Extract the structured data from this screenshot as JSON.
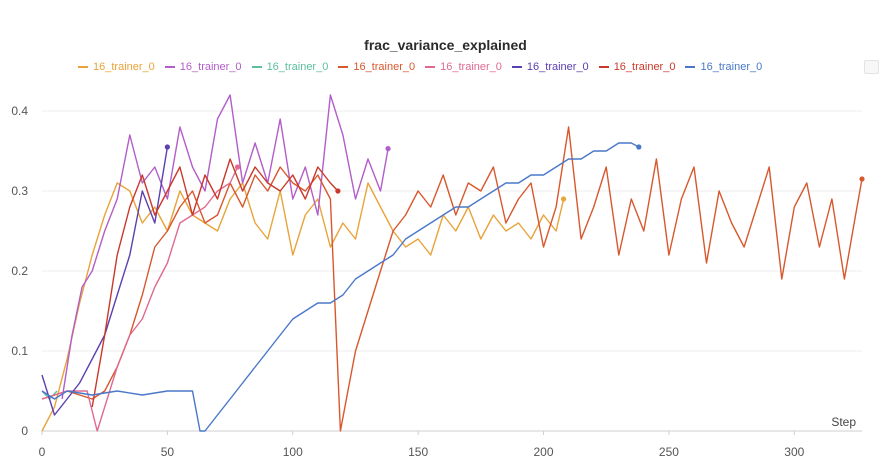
{
  "chart_data": {
    "type": "line",
    "title": "frac_variance_explained",
    "xlabel": "Step",
    "ylabel": "",
    "xlim": [
      0,
      327
    ],
    "ylim": [
      0,
      0.42
    ],
    "xticks": [
      0,
      50,
      100,
      150,
      200,
      250,
      300
    ],
    "yticks": [
      0,
      0.1,
      0.2,
      0.3,
      0.4
    ],
    "ytick_labels": [
      "0",
      "0.1",
      "0.2",
      "0.3",
      "0.4"
    ],
    "grid": true,
    "legend_position": "top",
    "series": [
      {
        "name": "16_trainer_0",
        "color": "#e8a33a",
        "end_marker": true,
        "x": [
          0,
          5,
          10,
          15,
          20,
          25,
          30,
          35,
          40,
          45,
          50,
          55,
          60,
          65,
          70,
          75,
          80,
          85,
          90,
          95,
          100,
          105,
          110,
          115,
          120,
          125,
          130,
          135,
          140,
          145,
          150,
          155,
          160,
          165,
          170,
          175,
          180,
          185,
          190,
          195,
          200,
          205,
          208
        ],
        "y": [
          0.0,
          0.03,
          0.09,
          0.16,
          0.22,
          0.27,
          0.31,
          0.3,
          0.26,
          0.28,
          0.25,
          0.3,
          0.27,
          0.26,
          0.25,
          0.29,
          0.31,
          0.26,
          0.24,
          0.3,
          0.22,
          0.27,
          0.29,
          0.23,
          0.26,
          0.24,
          0.31,
          0.28,
          0.25,
          0.23,
          0.24,
          0.22,
          0.27,
          0.25,
          0.28,
          0.24,
          0.27,
          0.25,
          0.26,
          0.24,
          0.27,
          0.25,
          0.29
        ]
      },
      {
        "name": "16_trainer_0",
        "color": "#b25dc9",
        "end_marker": true,
        "x": [
          8,
          12,
          16,
          20,
          25,
          30,
          35,
          40,
          45,
          50,
          55,
          60,
          65,
          70,
          75,
          80,
          85,
          90,
          95,
          100,
          105,
          110,
          115,
          120,
          125,
          130,
          135,
          138
        ],
        "y": [
          0.04,
          0.12,
          0.18,
          0.2,
          0.25,
          0.29,
          0.37,
          0.31,
          0.33,
          0.29,
          0.38,
          0.33,
          0.3,
          0.39,
          0.42,
          0.31,
          0.36,
          0.31,
          0.39,
          0.29,
          0.33,
          0.27,
          0.42,
          0.37,
          0.29,
          0.34,
          0.3,
          0.353
        ]
      },
      {
        "name": "16_trainer_0",
        "color": "#5dbf9d",
        "end_marker": false,
        "x": [
          0,
          3,
          6
        ],
        "y": [
          0.05,
          0.04,
          0.05
        ]
      },
      {
        "name": "16_trainer_0",
        "color": "#d8582e",
        "end_marker": true,
        "x": [
          0,
          10,
          20,
          25,
          30,
          35,
          40,
          45,
          50,
          55,
          60,
          65,
          70,
          75,
          80,
          85,
          90,
          95,
          100,
          105,
          110,
          115,
          119,
          122,
          125,
          130,
          135,
          140,
          145,
          150,
          155,
          160,
          165,
          170,
          175,
          180,
          185,
          190,
          195,
          200,
          205,
          210,
          215,
          220,
          225,
          230,
          235,
          240,
          245,
          250,
          255,
          260,
          265,
          270,
          275,
          280,
          285,
          290,
          295,
          300,
          305,
          310,
          315,
          320,
          325,
          327
        ],
        "y": [
          0.04,
          0.05,
          0.04,
          0.05,
          0.08,
          0.12,
          0.17,
          0.23,
          0.25,
          0.28,
          0.3,
          0.26,
          0.27,
          0.31,
          0.28,
          0.32,
          0.3,
          0.33,
          0.31,
          0.3,
          0.32,
          0.29,
          0.0,
          0.05,
          0.1,
          0.15,
          0.2,
          0.25,
          0.27,
          0.3,
          0.28,
          0.32,
          0.27,
          0.31,
          0.3,
          0.33,
          0.26,
          0.29,
          0.31,
          0.23,
          0.28,
          0.38,
          0.24,
          0.28,
          0.33,
          0.22,
          0.29,
          0.25,
          0.34,
          0.22,
          0.29,
          0.33,
          0.21,
          0.3,
          0.26,
          0.23,
          0.28,
          0.33,
          0.19,
          0.28,
          0.31,
          0.23,
          0.29,
          0.19,
          0.28,
          0.315
        ]
      },
      {
        "name": "16_trainer_0",
        "color": "#e06a8f",
        "end_marker": true,
        "x": [
          0,
          10,
          18,
          22,
          25,
          30,
          35,
          40,
          45,
          50,
          55,
          60,
          65,
          70,
          75,
          78
        ],
        "y": [
          0.04,
          0.05,
          0.05,
          0.0,
          0.03,
          0.08,
          0.12,
          0.14,
          0.18,
          0.21,
          0.26,
          0.27,
          0.28,
          0.3,
          0.31,
          0.33
        ]
      },
      {
        "name": "16_trainer_0",
        "color": "#5b40b0",
        "end_marker": true,
        "x": [
          0,
          5,
          10,
          15,
          20,
          25,
          30,
          35,
          40,
          45,
          50
        ],
        "y": [
          0.07,
          0.02,
          0.04,
          0.06,
          0.09,
          0.12,
          0.17,
          0.22,
          0.3,
          0.26,
          0.355
        ]
      },
      {
        "name": "16_trainer_0",
        "color": "#c9392b",
        "end_marker": true,
        "x": [
          20,
          25,
          30,
          35,
          40,
          45,
          50,
          55,
          60,
          65,
          70,
          75,
          80,
          85,
          90,
          95,
          100,
          105,
          110,
          115,
          118
        ],
        "y": [
          0.03,
          0.12,
          0.22,
          0.28,
          0.32,
          0.27,
          0.3,
          0.33,
          0.27,
          0.32,
          0.29,
          0.34,
          0.3,
          0.33,
          0.31,
          0.3,
          0.32,
          0.29,
          0.33,
          0.31,
          0.3
        ]
      },
      {
        "name": "16_trainer_0",
        "color": "#4a78c8",
        "end_marker": true,
        "x": [
          0,
          5,
          10,
          20,
          30,
          40,
          50,
          60,
          63,
          65,
          70,
          75,
          80,
          85,
          90,
          95,
          100,
          105,
          110,
          115,
          120,
          125,
          130,
          135,
          140,
          145,
          150,
          155,
          160,
          165,
          170,
          175,
          180,
          185,
          190,
          195,
          200,
          205,
          210,
          215,
          220,
          225,
          230,
          235,
          238
        ],
        "y": [
          0.05,
          0.04,
          0.05,
          0.045,
          0.05,
          0.045,
          0.05,
          0.05,
          0.0,
          0.0,
          0.02,
          0.04,
          0.06,
          0.08,
          0.1,
          0.12,
          0.14,
          0.15,
          0.16,
          0.16,
          0.17,
          0.19,
          0.2,
          0.21,
          0.22,
          0.24,
          0.25,
          0.26,
          0.27,
          0.28,
          0.28,
          0.29,
          0.3,
          0.31,
          0.31,
          0.32,
          0.32,
          0.33,
          0.34,
          0.34,
          0.35,
          0.35,
          0.36,
          0.36,
          0.355
        ]
      }
    ]
  }
}
